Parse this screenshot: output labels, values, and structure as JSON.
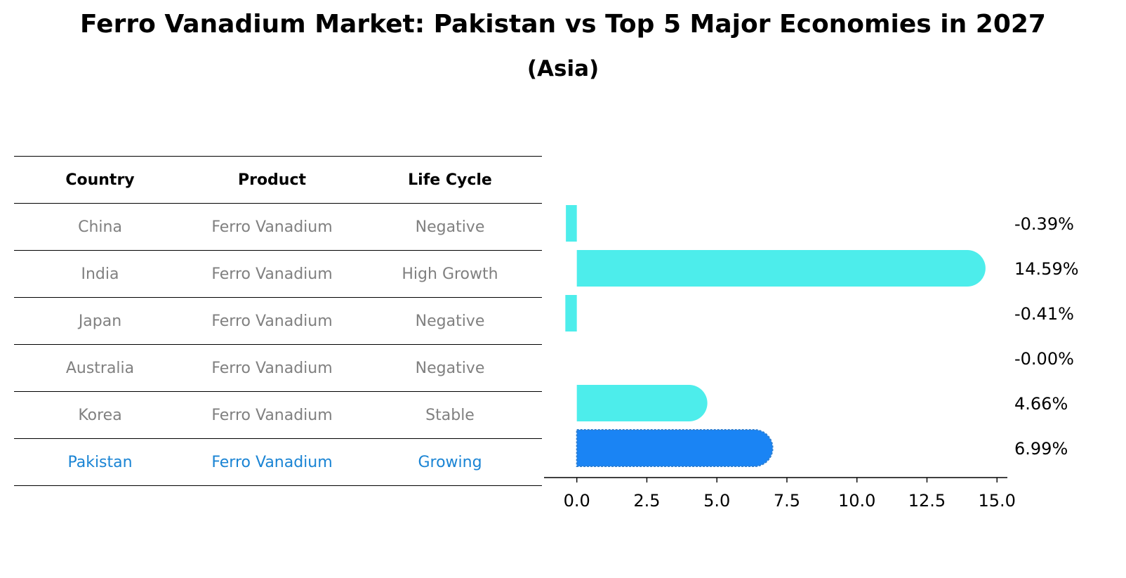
{
  "title": "Ferro Vanadium Market: Pakistan vs Top 5 Major Economies in 2027",
  "subtitle": "(Asia)",
  "table": {
    "headers": [
      "Country",
      "Product",
      "Life Cycle"
    ],
    "rows": [
      {
        "country": "China",
        "product": "Ferro Vanadium",
        "life_cycle": "Negative"
      },
      {
        "country": "India",
        "product": "Ferro Vanadium",
        "life_cycle": "High Growth"
      },
      {
        "country": "Japan",
        "product": "Ferro Vanadium",
        "life_cycle": "Negative"
      },
      {
        "country": "Australia",
        "product": "Ferro Vanadium",
        "life_cycle": "Negative"
      },
      {
        "country": "Korea",
        "product": "Ferro Vanadium",
        "life_cycle": "Stable"
      },
      {
        "country": "Pakistan",
        "product": "Ferro Vanadium",
        "life_cycle": "Growing"
      }
    ],
    "highlight_country": "Pakistan"
  },
  "chart_data": {
    "type": "bar",
    "orientation": "horizontal",
    "categories": [
      "China",
      "India",
      "Japan",
      "Australia",
      "Korea",
      "Pakistan"
    ],
    "values": [
      -0.39,
      14.59,
      -0.41,
      -0.0,
      4.66,
      6.99
    ],
    "value_labels": [
      "-0.39%",
      "14.59%",
      "-0.41%",
      "-0.00%",
      "4.66%",
      "6.99%"
    ],
    "xlim": [
      -1.17,
      15.37
    ],
    "xticks": [
      0.0,
      2.5,
      5.0,
      7.5,
      10.0,
      12.5,
      15.0
    ],
    "xtick_labels": [
      "0.0",
      "2.5",
      "5.0",
      "7.5",
      "10.0",
      "12.5",
      "15.0"
    ],
    "highlight": "Pakistan",
    "colors": {
      "default": "#4dedeb",
      "highlight": "#1a84f4",
      "highlight_border": "#2f7fd0"
    }
  }
}
